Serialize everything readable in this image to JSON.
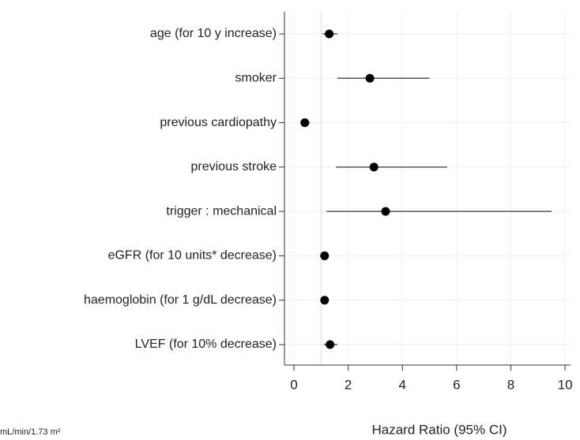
{
  "chart_data": {
    "type": "forest",
    "categories": [
      "age (for 10 y increase)",
      "smoker",
      "previous cardiopathy",
      "previous stroke",
      "trigger : mechanical",
      "eGFR (for 10 units* decrease)",
      "haemoglobin (for 1 g/dL decrease)",
      "LVEF (for 10% decrease)"
    ],
    "values": [
      1.3,
      2.8,
      0.4,
      2.95,
      3.38,
      1.13,
      1.13,
      1.33
    ],
    "lower": [
      1.05,
      1.6,
      0.26,
      1.55,
      1.2,
      1.0,
      1.0,
      1.1
    ],
    "upper": [
      1.6,
      5.0,
      0.6,
      5.65,
      9.5,
      1.27,
      1.27,
      1.6
    ],
    "color": "#000000",
    "xlim": [
      -0.35,
      10.2
    ],
    "xticks": [
      0,
      2,
      4,
      6,
      8,
      10
    ],
    "ref_line": 1,
    "grid": true,
    "x_label": "Hazard Ratio (95% CI)",
    "footnote": "mL/min/1.73 m²"
  }
}
